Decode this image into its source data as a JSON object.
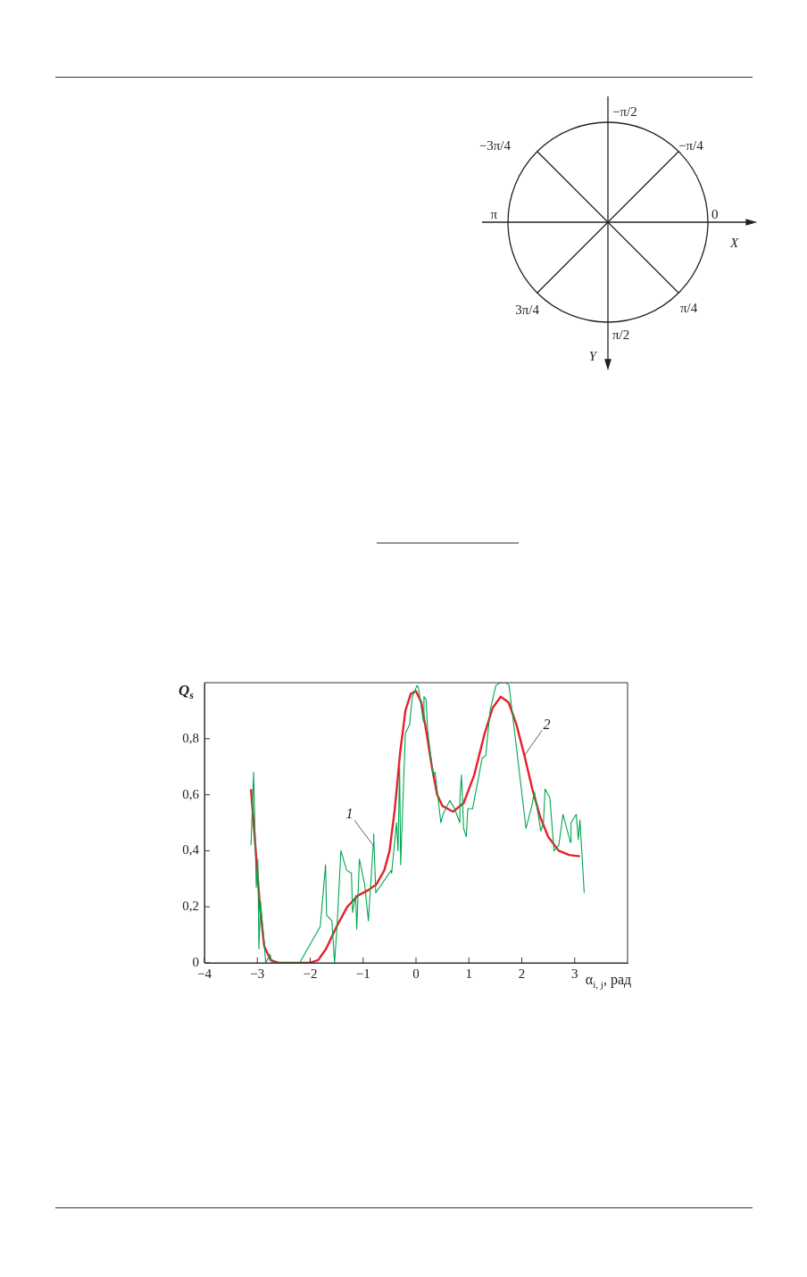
{
  "chart_data": [
    {
      "type": "other",
      "annotations": [
        "−π/2",
        "−3π/4",
        "−π/4",
        "π",
        "0",
        "X",
        "3π/4",
        "π/4",
        "π/2",
        "Y"
      ]
    },
    {
      "type": "line",
      "xlabel": "α$_{i, j}$, рад",
      "ylabel": "Q$_{s}$",
      "xlim": [
        -4,
        4
      ],
      "ylim": [
        0,
        1
      ],
      "xticks": [
        {
          "value": -4,
          "label": "−4"
        },
        {
          "value": -3,
          "label": "−3"
        },
        {
          "value": -2,
          "label": "−2"
        },
        {
          "value": -1,
          "label": "−1"
        },
        0,
        1,
        2,
        3
      ],
      "yticks": [
        0,
        {
          "value": 0.2,
          "label": "0,2"
        },
        {
          "value": 0.4,
          "label": "0,4"
        },
        {
          "value": 0.6,
          "label": "0,6"
        },
        {
          "value": 0.8,
          "label": "0,8"
        }
      ],
      "grid": false,
      "legend": false,
      "marker": "none",
      "line_style": "solid",
      "series": [
        {
          "name": "1",
          "color": "#00a650",
          "x": [
            -3.12,
            -3.07,
            -3.02,
            -2.99,
            -2.97,
            -2.94,
            -2.84,
            -2.76,
            -2.72,
            -2.2,
            -1.81,
            -1.71,
            -1.69,
            -1.59,
            -1.54,
            -1.49,
            -1.42,
            -1.31,
            -1.22,
            -1.2,
            -1.14,
            -1.12,
            -1.07,
            -0.97,
            -0.9,
            -0.81,
            -0.8,
            -0.76,
            -0.47,
            -0.46,
            -0.37,
            -0.34,
            -0.31,
            -0.29,
            -0.2,
            -0.12,
            -0.07,
            0.02,
            0.05,
            0.14,
            0.15,
            0.19,
            0.22,
            0.32,
            0.36,
            0.47,
            0.51,
            0.64,
            0.73,
            0.83,
            0.83,
            0.86,
            0.9,
            0.95,
            0.98,
            1.07,
            1.25,
            1.32,
            1.4,
            1.51,
            1.59,
            1.71,
            1.76,
            2.08,
            2.19,
            2.24,
            2.36,
            2.41,
            2.44,
            2.53,
            2.61,
            2.7,
            2.78,
            2.92,
            2.93,
            3.03,
            3.07,
            3.1,
            3.18
          ],
          "values": [
            0.42,
            0.68,
            0.27,
            0.37,
            0.05,
            0.22,
            0,
            0.03,
            0,
            0,
            0.13,
            0.35,
            0.17,
            0.15,
            0,
            0.14,
            0.4,
            0.33,
            0.32,
            0.18,
            0.24,
            0.12,
            0.37,
            0.28,
            0.15,
            0.42,
            0.46,
            0.25,
            0.33,
            0.32,
            0.5,
            0.4,
            0.71,
            0.35,
            0.82,
            0.85,
            0.95,
            0.99,
            0.98,
            0.86,
            0.95,
            0.94,
            0.83,
            0.67,
            0.68,
            0.5,
            0.53,
            0.58,
            0.55,
            0.5,
            0.59,
            0.67,
            0.48,
            0.45,
            0.55,
            0.55,
            0.73,
            0.74,
            0.9,
            0.99,
            1.0,
            1.0,
            0.99,
            0.48,
            0.56,
            0.61,
            0.47,
            0.5,
            0.62,
            0.59,
            0.4,
            0.42,
            0.53,
            0.43,
            0.5,
            0.53,
            0.44,
            0.51,
            0.25
          ]
        },
        {
          "name": "2",
          "color": "#e8202a",
          "x": [
            -3.12,
            -3.05,
            -2.95,
            -2.87,
            -2.75,
            -2.6,
            -2.0,
            -1.85,
            -1.7,
            -1.5,
            -1.3,
            -1.1,
            -0.9,
            -0.75,
            -0.6,
            -0.5,
            -0.4,
            -0.3,
            -0.2,
            -0.1,
            0,
            0.1,
            0.2,
            0.3,
            0.4,
            0.5,
            0.7,
            0.9,
            1.1,
            1.3,
            1.45,
            1.6,
            1.75,
            1.9,
            2.05,
            2.2,
            2.35,
            2.5,
            2.7,
            2.9,
            3.1
          ],
          "values": [
            0.62,
            0.45,
            0.2,
            0.06,
            0.01,
            0,
            0,
            0.01,
            0.05,
            0.13,
            0.2,
            0.24,
            0.26,
            0.28,
            0.33,
            0.4,
            0.55,
            0.75,
            0.9,
            0.96,
            0.97,
            0.93,
            0.82,
            0.7,
            0.6,
            0.56,
            0.54,
            0.57,
            0.67,
            0.82,
            0.91,
            0.95,
            0.93,
            0.85,
            0.74,
            0.62,
            0.52,
            0.45,
            0.4,
            0.385,
            0.38
          ]
        }
      ]
    }
  ]
}
